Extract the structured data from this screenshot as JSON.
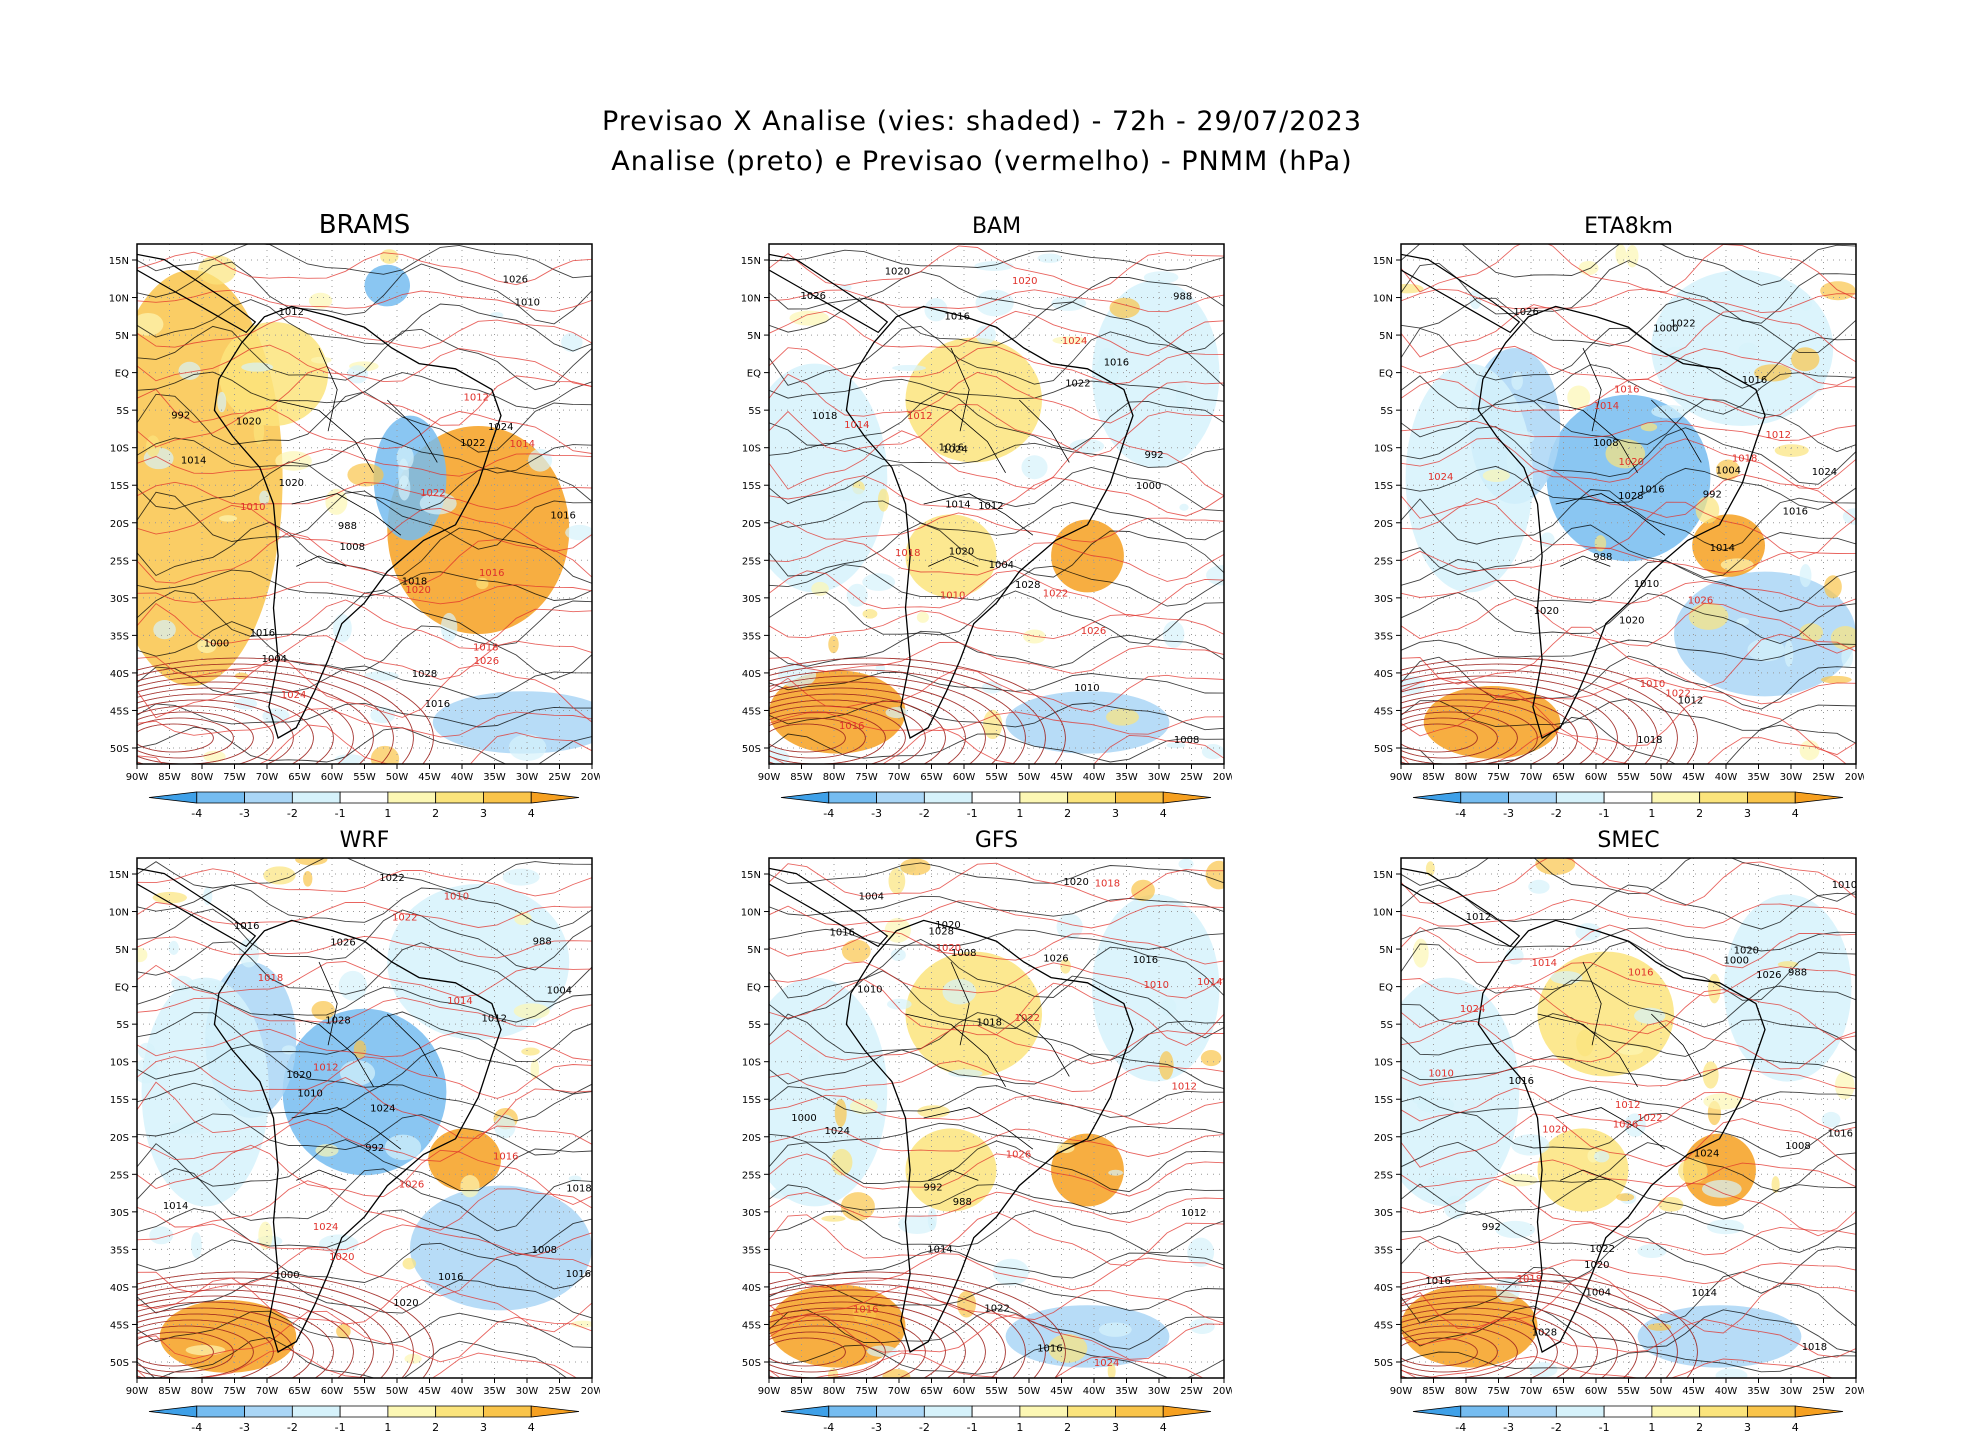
{
  "header": {
    "line1": "Previsao X Analise (vies: shaded) - 72h - 29/07/2023",
    "line2": "Analise (preto) e Previsao (vermelho) - PNMM (hPa)"
  },
  "panels": [
    {
      "name": "BRAMS",
      "bias": "warm"
    },
    {
      "name": "BAM",
      "bias": "mixed"
    },
    {
      "name": "ETA8km",
      "bias": "cold"
    },
    {
      "name": "WRF",
      "bias": "cold"
    },
    {
      "name": "GFS",
      "bias": "mixed"
    },
    {
      "name": "SMEC",
      "bias": "mixed"
    }
  ],
  "lat_labels": [
    "15N",
    "10N",
    "5N",
    "EQ",
    "5S",
    "10S",
    "15S",
    "20S",
    "25S",
    "30S",
    "35S",
    "40S",
    "45S",
    "50S"
  ],
  "lon_labels": [
    "90W",
    "85W",
    "80W",
    "75W",
    "70W",
    "65W",
    "60W",
    "55W",
    "50W",
    "45W",
    "40W",
    "35W",
    "30W",
    "25W",
    "20W"
  ],
  "colorbar": {
    "ticks": [
      "-4",
      "-3",
      "-2",
      "-1",
      "1",
      "2",
      "3",
      "4"
    ],
    "colors": [
      "#3ea0e8",
      "#75bcf0",
      "#aad6f6",
      "#d6f2fb",
      "#ffffff",
      "#fcf7b4",
      "#fbe47c",
      "#f9c44a",
      "#f6a020"
    ]
  },
  "colors": {
    "analysis": "#000000",
    "forecast": "#e0302a"
  },
  "contour_labels": {
    "black": [
      "1016",
      "1012",
      "1016",
      "1020",
      "1024",
      "1028",
      "1016",
      "1020",
      "1008",
      "1004",
      "1000",
      "992",
      "988",
      "1018",
      "1022",
      "1026",
      "1014",
      "1010"
    ],
    "red": [
      "1016",
      "1014",
      "1018",
      "1020",
      "1024",
      "1026",
      "1022",
      "1012",
      "1010"
    ]
  }
}
